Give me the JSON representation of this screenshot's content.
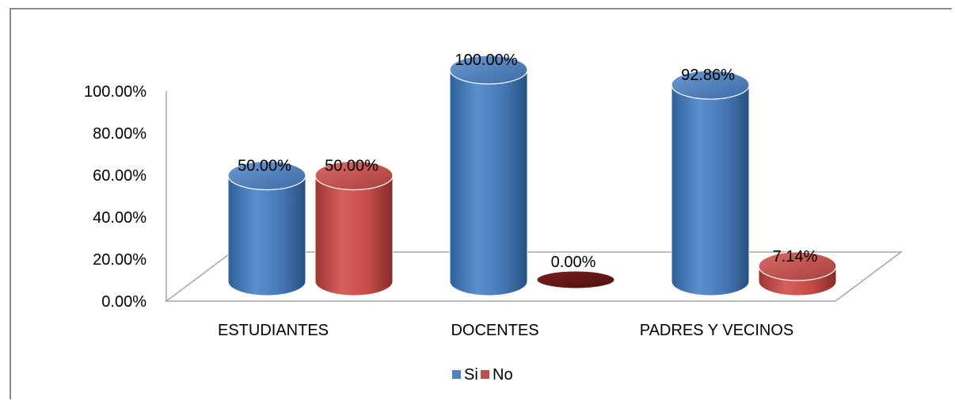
{
  "chart_data": {
    "type": "bar",
    "categories": [
      "ESTUDIANTES",
      "DOCENTES",
      "PADRES Y VECINOS"
    ],
    "series": [
      {
        "name": "Si",
        "values": [
          50.0,
          100.0,
          92.86
        ],
        "labels": [
          "50.00%",
          "100.00%",
          "92.86%"
        ],
        "color": "#4f81bd"
      },
      {
        "name": "No",
        "values": [
          50.0,
          0.0,
          7.14
        ],
        "labels": [
          "50.00%",
          "0.00%",
          "7.14%"
        ],
        "color": "#c0504d"
      }
    ],
    "yticks": [
      "0.00%",
      "20.00%",
      "40.00%",
      "60.00%",
      "80.00%",
      "100.00%"
    ],
    "ylim": [
      0,
      100
    ],
    "legend_position": "bottom",
    "style": "3d-cylinder",
    "grid": false
  }
}
